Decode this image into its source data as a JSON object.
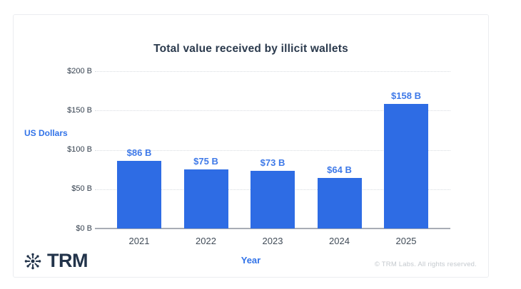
{
  "card": {
    "title": "Total value received by illicit wallets"
  },
  "axes": {
    "y_title": "US Dollars",
    "x_title": "Year"
  },
  "footer": {
    "copyright": "© TRM Labs. All rights reserved."
  },
  "logo": {
    "text": "TRM",
    "icon": "trm-starburst-icon"
  },
  "colors": {
    "bar": "#2e6ce4",
    "value_label": "#3e79e8",
    "axis_blue": "#3273e8",
    "title_text": "#2b3a4d",
    "tick_text": "#333f4d",
    "category_text": "#404b57",
    "gridline": "#d7dbe0",
    "baseline": "#a8adb5",
    "footer_text": "#c4c9ce",
    "card_border": "#ebedf0",
    "logo_text": "#22334a"
  },
  "chart_data": {
    "type": "bar",
    "title": "Total value received by illicit wallets",
    "xlabel": "Year",
    "ylabel": "US Dollars",
    "categories": [
      "2021",
      "2022",
      "2023",
      "2024",
      "2025"
    ],
    "values": [
      86,
      75,
      73,
      64,
      158
    ],
    "value_labels": [
      "$86 B",
      "$75 B",
      "$73 B",
      "$64 B",
      "$158 B"
    ],
    "yticks": [
      {
        "label": "$0 B",
        "value": 0
      },
      {
        "label": "$50 B",
        "value": 50
      },
      {
        "label": "$100 B",
        "value": 100
      },
      {
        "label": "$150 B",
        "value": 150
      },
      {
        "label": "$200 B",
        "value": 200
      }
    ],
    "ylim": [
      0,
      200
    ],
    "grid": "dotted-horizontal",
    "legend": "none",
    "series_name": "Total value received by illicit wallets (US Dollars, billions)"
  }
}
